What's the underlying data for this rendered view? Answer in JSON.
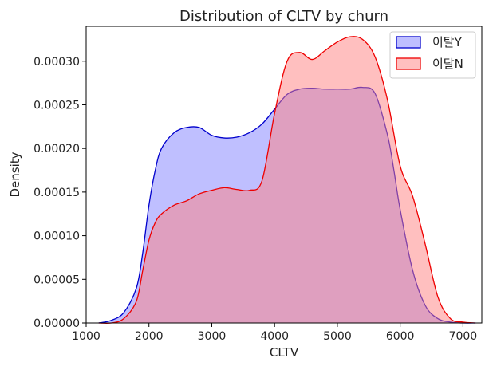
{
  "chart_data": {
    "type": "area",
    "title": "Distribution of CLTV by churn",
    "xlabel": "CLTV",
    "ylabel": "Density",
    "xlim": [
      1000,
      7300
    ],
    "ylim": [
      0,
      0.00034
    ],
    "xticks": [
      1000,
      2000,
      3000,
      4000,
      5000,
      6000,
      7000
    ],
    "yticks": [
      0,
      5e-05,
      0.0001,
      0.00015,
      0.0002,
      0.00025,
      0.0003
    ],
    "ytick_labels": [
      "0.00000",
      "0.00005",
      "0.00010",
      "0.00015",
      "0.00020",
      "0.00025",
      "0.00030"
    ],
    "grid": false,
    "legend_position": "top-right",
    "series": [
      {
        "name": "이탈Y",
        "color": "#0000cc",
        "fill": "#8080ff",
        "x": [
          1200,
          1400,
          1600,
          1800,
          1900,
          2000,
          2100,
          2200,
          2400,
          2600,
          2800,
          3000,
          3200,
          3400,
          3600,
          3800,
          4000,
          4200,
          4400,
          4600,
          4800,
          5000,
          5200,
          5400,
          5600,
          5800,
          5900,
          6000,
          6200,
          6400,
          6600,
          6800,
          7000,
          7200
        ],
        "y": [
          0.0,
          3e-06,
          1.2e-05,
          4e-05,
          8e-05,
          0.000135,
          0.000175,
          0.0002,
          0.000218,
          0.000224,
          0.000224,
          0.000215,
          0.000212,
          0.000213,
          0.000218,
          0.000228,
          0.000245,
          0.000262,
          0.000268,
          0.000269,
          0.000268,
          0.000268,
          0.000268,
          0.00027,
          0.000263,
          0.000215,
          0.000175,
          0.00013,
          6e-05,
          2e-05,
          5e-06,
          1e-06,
          0.0,
          0.0
        ]
      },
      {
        "name": "이탈N",
        "color": "#ee0000",
        "fill": "#ff8080",
        "x": [
          1200,
          1400,
          1600,
          1800,
          1900,
          2000,
          2100,
          2200,
          2400,
          2600,
          2800,
          3000,
          3200,
          3400,
          3600,
          3800,
          4000,
          4200,
          4400,
          4600,
          4800,
          5000,
          5200,
          5400,
          5600,
          5800,
          6000,
          6200,
          6400,
          6600,
          6800,
          7000,
          7200
        ],
        "y": [
          0.0,
          0.0,
          5e-06,
          2.5e-05,
          6e-05,
          9.5e-05,
          0.000115,
          0.000125,
          0.000135,
          0.00014,
          0.000148,
          0.000152,
          0.000155,
          0.000153,
          0.000152,
          0.000163,
          0.00024,
          0.0003,
          0.00031,
          0.000302,
          0.000312,
          0.000322,
          0.000328,
          0.000325,
          0.000305,
          0.000255,
          0.00018,
          0.000145,
          9e-05,
          3e-05,
          5e-06,
          1e-06,
          0.0
        ]
      }
    ]
  }
}
